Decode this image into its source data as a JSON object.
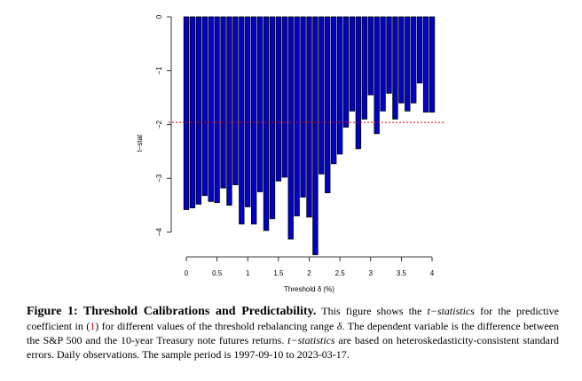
{
  "chart_data": {
    "type": "bar",
    "title": "",
    "xlabel": "Threshold δ (%)",
    "ylabel": "t−stat",
    "xlim": [
      -0.19,
      4.19
    ],
    "ylim": [
      -4.5,
      0
    ],
    "x_ticks": [
      0,
      0.5,
      1,
      1.5,
      2,
      2.5,
      3,
      3.5,
      4
    ],
    "x_tick_labels": [
      "0",
      "0.5",
      "1",
      "1.5",
      "2",
      "2.5",
      "3",
      "3.5",
      "4"
    ],
    "y_ticks": [
      0,
      -1,
      -2,
      -3,
      -4
    ],
    "y_tick_labels": [
      "0",
      "−1",
      "−2",
      "−3",
      "−4"
    ],
    "bar_width": 0.08,
    "x": [
      0,
      0.1,
      0.2,
      0.3,
      0.4,
      0.5,
      0.6,
      0.7,
      0.8,
      0.9,
      1.0,
      1.1,
      1.2,
      1.3,
      1.4,
      1.5,
      1.6,
      1.7,
      1.8,
      1.9,
      2.0,
      2.1,
      2.2,
      2.3,
      2.4,
      2.5,
      2.6,
      2.7,
      2.8,
      2.9,
      3.0,
      3.1,
      3.2,
      3.3,
      3.4,
      3.5,
      3.6,
      3.7,
      3.8,
      3.9,
      4.0
    ],
    "values": [
      -3.58,
      -3.55,
      -3.48,
      -3.32,
      -3.43,
      -3.45,
      -3.18,
      -3.5,
      -3.12,
      -3.85,
      -3.53,
      -3.85,
      -3.25,
      -3.97,
      -3.75,
      -3.05,
      -2.98,
      -4.13,
      -3.7,
      -3.35,
      -3.72,
      -4.42,
      -2.92,
      -3.27,
      -2.73,
      -2.55,
      -2.05,
      -1.75,
      -2.45,
      -1.9,
      -1.45,
      -2.17,
      -1.75,
      -1.42,
      -1.9,
      -1.6,
      -1.75,
      -1.6,
      -1.23,
      -1.77,
      -1.77
    ],
    "bar_color": "#0000cc",
    "bar_edge_color": "#000000",
    "reference_line": {
      "y": -1.96,
      "style": "dotted",
      "color": "#dd0000"
    }
  },
  "caption": {
    "label": "Figure 1:",
    "title": "Threshold Calibrations and Predictability.",
    "text_1": " This figure shows the ",
    "tstat_1": "t−statistics",
    "text_2": " for the predictive coefficient in (",
    "ref": "1",
    "text_3": ") for different values of the threshold rebalancing range ",
    "delta": "δ",
    "text_4": ". The dependent variable is the difference between the S&P 500 and the 10-year Treasury note futures returns. ",
    "tstat_2": "t−statistics",
    "text_5": " are based on heteroskedasticity-consistent standard errors. Daily observations. The sample period is 1997-09-10 to 2023-03-17."
  }
}
